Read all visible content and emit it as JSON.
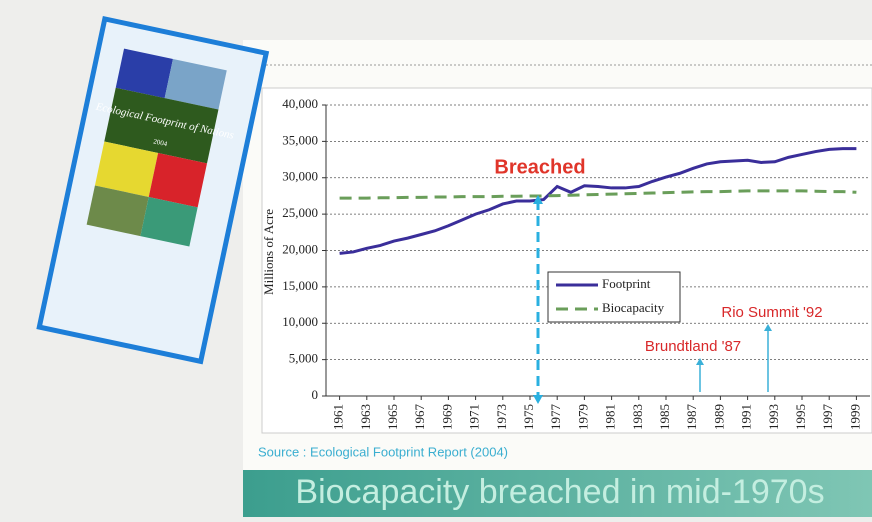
{
  "cover": {
    "title": "Ecological Footprint of Nations",
    "year": "2004"
  },
  "chart_data": {
    "type": "line",
    "y_label": "Millions of Acre",
    "x": [
      1961,
      1962,
      1963,
      1964,
      1965,
      1966,
      1967,
      1968,
      1969,
      1970,
      1971,
      1972,
      1973,
      1974,
      1975,
      1976,
      1977,
      1978,
      1979,
      1980,
      1981,
      1982,
      1983,
      1984,
      1985,
      1986,
      1987,
      1988,
      1989,
      1990,
      1991,
      1992,
      1993,
      1994,
      1995,
      1996,
      1997,
      1998,
      1999
    ],
    "series": [
      {
        "name": "Footprint",
        "color": "#3a2e9a",
        "dash": false,
        "values": [
          19600,
          19800,
          20300,
          20700,
          21300,
          21700,
          22200,
          22700,
          23400,
          24200,
          25000,
          25600,
          26400,
          26800,
          26800,
          27000,
          28800,
          28000,
          28900,
          28800,
          28600,
          28600,
          28800,
          29500,
          30100,
          30600,
          31300,
          31900,
          32200,
          32300,
          32400,
          32100,
          32200,
          32800,
          33200,
          33600,
          33900,
          34000,
          34000
        ]
      },
      {
        "name": "Biocapacity",
        "color": "#6a9e5a",
        "dash": true,
        "values": [
          27200,
          27200,
          27200,
          27250,
          27250,
          27300,
          27300,
          27350,
          27350,
          27400,
          27400,
          27400,
          27450,
          27450,
          27500,
          27500,
          27550,
          27600,
          27650,
          27700,
          27750,
          27800,
          27850,
          27900,
          27950,
          28000,
          28050,
          28100,
          28100,
          28150,
          28200,
          28200,
          28200,
          28200,
          28200,
          28150,
          28100,
          28100,
          28000
        ]
      }
    ],
    "xlim": [
      1960,
      2000
    ],
    "xticks": [
      1961,
      1963,
      1965,
      1967,
      1969,
      1971,
      1973,
      1975,
      1977,
      1979,
      1981,
      1983,
      1985,
      1987,
      1989,
      1991,
      1993,
      1995,
      1997,
      1999
    ],
    "ylim": [
      0,
      40000
    ],
    "yticks": [
      0,
      {
        "value": 5000,
        "label": "5,000"
      },
      {
        "value": 10000,
        "label": "10,000"
      },
      {
        "value": 15000,
        "label": "15,000"
      },
      {
        "value": 20000,
        "label": "20,000"
      },
      {
        "value": 25000,
        "label": "25,000"
      },
      {
        "value": 30000,
        "label": "30,000"
      },
      {
        "value": 35000,
        "label": "35,000"
      },
      {
        "value": 40000,
        "label": "40,000"
      }
    ],
    "grid": true,
    "annotations": [
      "Breached",
      "Brundtland '87",
      "Rio Summit '92"
    ],
    "source": "Source : Ecological Footprint Report (2004)",
    "headline": "Biocapacity breached in mid-1970s"
  }
}
